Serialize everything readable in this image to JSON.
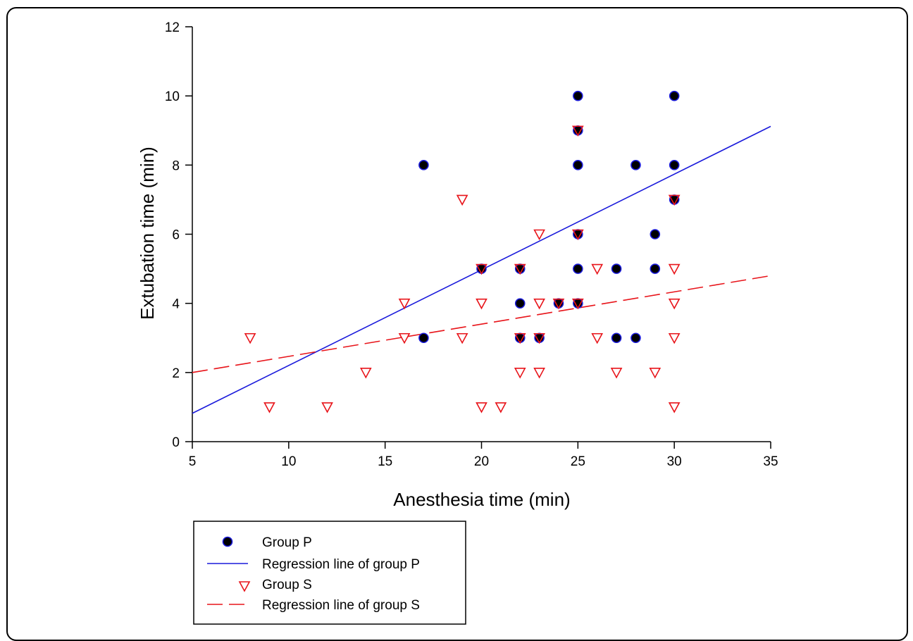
{
  "chart_data": {
    "type": "scatter",
    "title": "",
    "xlabel": "Anesthesia time (min)",
    "ylabel": "Extubation time (min)",
    "xlim": [
      5,
      35
    ],
    "ylim": [
      0,
      12
    ],
    "xticks": [
      5,
      10,
      15,
      20,
      25,
      30,
      35
    ],
    "yticks": [
      0,
      2,
      4,
      6,
      8,
      10,
      12
    ],
    "grid": false,
    "legend_position": "bottom-left, below plot",
    "series": [
      {
        "name": "Group P",
        "kind": "scatter",
        "marker": "filled-circle",
        "color": "#000000",
        "edge_color": "#1a1adb",
        "points": [
          [
            17,
            8
          ],
          [
            17,
            3
          ],
          [
            20,
            5
          ],
          [
            22,
            5
          ],
          [
            22,
            4
          ],
          [
            22,
            3
          ],
          [
            23,
            3
          ],
          [
            24,
            4
          ],
          [
            25,
            10
          ],
          [
            25,
            9
          ],
          [
            25,
            8
          ],
          [
            25,
            6
          ],
          [
            25,
            5
          ],
          [
            25,
            4
          ],
          [
            27,
            5
          ],
          [
            27,
            3
          ],
          [
            28,
            8
          ],
          [
            28,
            3
          ],
          [
            29,
            6
          ],
          [
            29,
            5
          ],
          [
            30,
            10
          ],
          [
            30,
            8
          ],
          [
            30,
            7
          ]
        ]
      },
      {
        "name": "Regression line of group P",
        "kind": "line",
        "style": "solid",
        "color": "#1a1adb",
        "points": [
          [
            5,
            0.82
          ],
          [
            35,
            9.12
          ]
        ]
      },
      {
        "name": "Group S",
        "kind": "scatter",
        "marker": "open-triangle-down",
        "color": "#e8141a",
        "points": [
          [
            8,
            3
          ],
          [
            9,
            1
          ],
          [
            12,
            1
          ],
          [
            14,
            2
          ],
          [
            16,
            4
          ],
          [
            16,
            3
          ],
          [
            19,
            7
          ],
          [
            19,
            3
          ],
          [
            20,
            5
          ],
          [
            20,
            4
          ],
          [
            20,
            1
          ],
          [
            21,
            1
          ],
          [
            22,
            5
          ],
          [
            22,
            3
          ],
          [
            22,
            2
          ],
          [
            23,
            6
          ],
          [
            23,
            4
          ],
          [
            23,
            3
          ],
          [
            23,
            2
          ],
          [
            24,
            4
          ],
          [
            25,
            9
          ],
          [
            25,
            6
          ],
          [
            25,
            4
          ],
          [
            26,
            5
          ],
          [
            26,
            3
          ],
          [
            27,
            2
          ],
          [
            29,
            2
          ],
          [
            30,
            7
          ],
          [
            30,
            5
          ],
          [
            30,
            4
          ],
          [
            30,
            3
          ],
          [
            30,
            1
          ]
        ]
      },
      {
        "name": "Regression line of group S",
        "kind": "line",
        "style": "dashed",
        "color": "#e8141a",
        "points": [
          [
            5,
            2.0
          ],
          [
            35,
            4.8
          ]
        ]
      }
    ]
  }
}
